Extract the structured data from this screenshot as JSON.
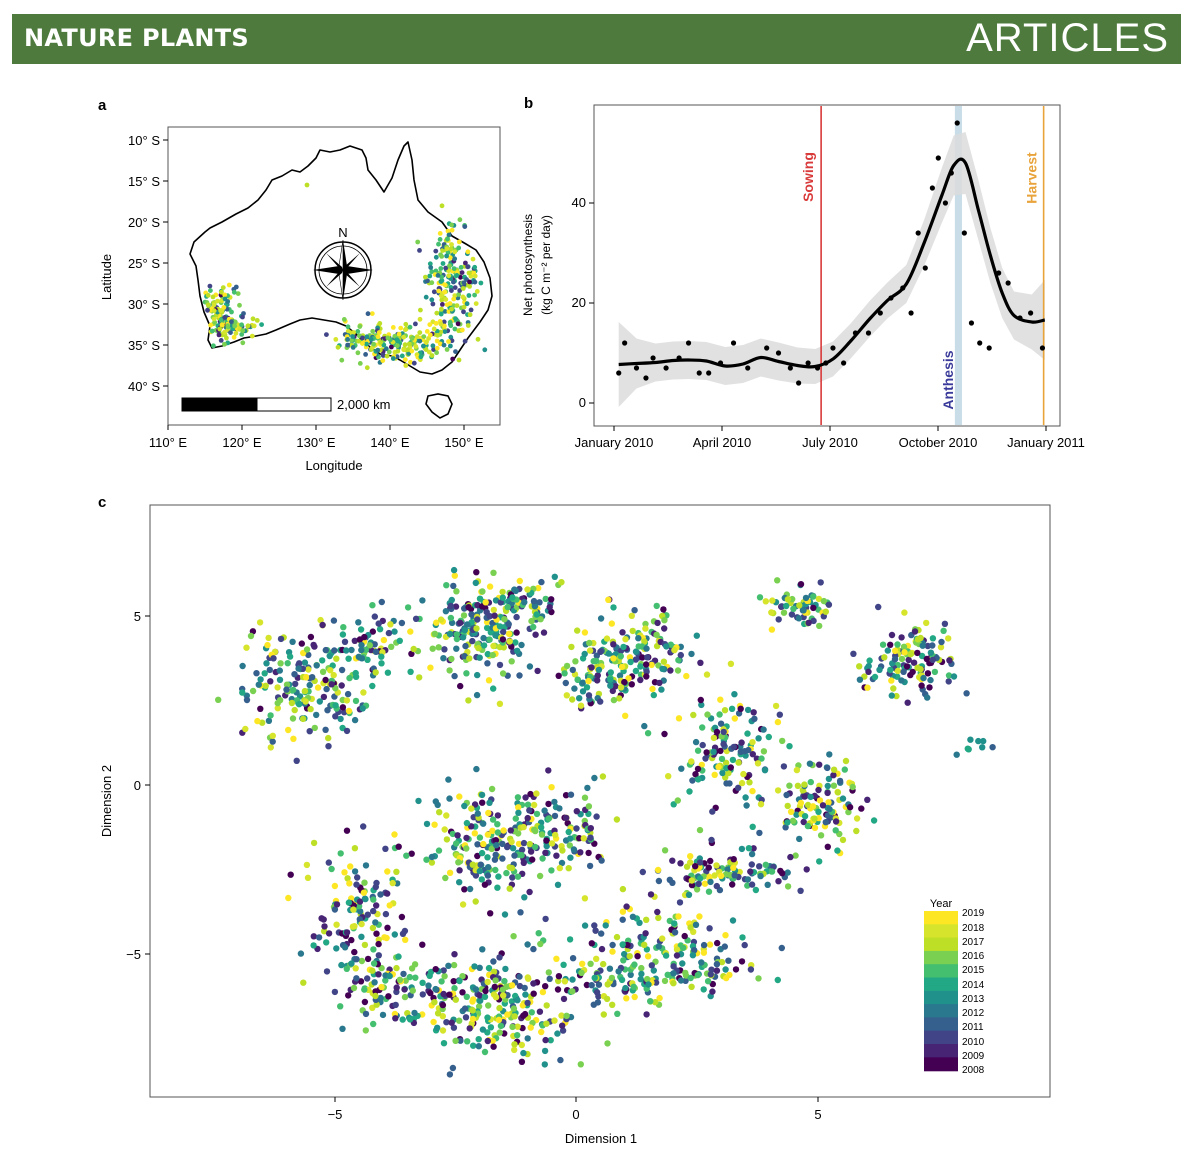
{
  "header": {
    "journal": "NATURE PLANTS",
    "section": "ARTICLES",
    "banner_color": "#4e7b3d"
  },
  "panels": {
    "a": {
      "letter": "a",
      "xlabel": "Longitude",
      "ylabel": "Latitude",
      "lat_ticks": [
        "10° S",
        "15° S",
        "20° S",
        "25° S",
        "30° S",
        "35° S",
        "40° S"
      ],
      "lon_ticks": [
        "110° E",
        "120° E",
        "130° E",
        "140° E",
        "150° E"
      ],
      "north_label": "N",
      "scalebar_label": "2,000 km",
      "map_name": "Australia",
      "point_palette": "viridis"
    },
    "b": {
      "letter": "b",
      "ylabel_line1": "Net photosynthesis",
      "ylabel_line2": "(kg C m⁻² per day)",
      "x_ticks": [
        "January 2010",
        "April 2010",
        "July 2010",
        "October 2010",
        "January 2011"
      ],
      "y_ticks": [
        "0",
        "20",
        "40"
      ],
      "sowing_label": "Sowing",
      "anthesis_label": "Anthesis",
      "harvest_label": "Harvest",
      "sowing_color": "#d93a3a",
      "anthesis_color": "#3a3a9a",
      "anthesis_band_color": "#c9dde8",
      "harvest_color": "#e8a33a"
    },
    "c": {
      "letter": "c",
      "xlabel": "Dimension 1",
      "ylabel": "Dimension 2",
      "x_ticks": [
        "−5",
        "0",
        "5"
      ],
      "y_ticks": [
        "5",
        "0",
        "−5"
      ],
      "legend_title": "Year",
      "legend_years": [
        "2019",
        "2018",
        "2017",
        "2016",
        "2015",
        "2014",
        "2013",
        "2012",
        "2011",
        "2010",
        "2009",
        "2008"
      ]
    }
  },
  "chart_data": [
    {
      "type": "scatter",
      "panel": "b",
      "ylabel": "Net photosynthesis (kg C m⁻² per day)",
      "xlim": [
        "2010-01-01",
        "2011-01-01"
      ],
      "ylim": [
        -3,
        59
      ],
      "observations": {
        "x": [
          "2010-01-05",
          "2010-01-10",
          "2010-01-20",
          "2010-01-28",
          "2010-02-03",
          "2010-02-14",
          "2010-02-25",
          "2010-03-05",
          "2010-03-14",
          "2010-03-22",
          "2010-04-01",
          "2010-04-12",
          "2010-04-24",
          "2010-05-10",
          "2010-05-20",
          "2010-05-30",
          "2010-06-06",
          "2010-06-14",
          "2010-06-22",
          "2010-06-29",
          "2010-07-05",
          "2010-07-14",
          "2010-07-24",
          "2010-08-04",
          "2010-08-14",
          "2010-08-23",
          "2010-09-02",
          "2010-09-09",
          "2010-09-15",
          "2010-09-21",
          "2010-09-27",
          "2010-10-02",
          "2010-10-08",
          "2010-10-13",
          "2010-10-18",
          "2010-10-24",
          "2010-10-30",
          "2010-11-06",
          "2010-11-14",
          "2010-11-22",
          "2010-11-30",
          "2010-12-10",
          "2010-12-19",
          "2010-12-29"
        ],
        "y": [
          6,
          12,
          7,
          5,
          9,
          7,
          9,
          12,
          6,
          6,
          8,
          12,
          7,
          11,
          10,
          7,
          4,
          8,
          7,
          8,
          11,
          8,
          14,
          14,
          18,
          21,
          23,
          18,
          34,
          27,
          43,
          49,
          40,
          46,
          56,
          34,
          16,
          12,
          11,
          26,
          24,
          17,
          18,
          11
        ]
      },
      "smooth_fit": {
        "name": "LOESS fit",
        "x": [
          "2010-01-05",
          "2010-01-20",
          "2010-02-05",
          "2010-02-20",
          "2010-03-05",
          "2010-03-20",
          "2010-04-05",
          "2010-04-20",
          "2010-05-05",
          "2010-05-20",
          "2010-06-05",
          "2010-06-20",
          "2010-07-05",
          "2010-07-20",
          "2010-08-05",
          "2010-08-20",
          "2010-09-05",
          "2010-09-20",
          "2010-10-05",
          "2010-10-15",
          "2010-10-25",
          "2010-11-05",
          "2010-11-15",
          "2010-11-25",
          "2010-12-05",
          "2010-12-20",
          "2010-12-31"
        ],
        "y": [
          7.7,
          7.9,
          8.1,
          8.5,
          8.6,
          8.4,
          7.4,
          7.8,
          9.1,
          8.3,
          7.5,
          7.3,
          8.8,
          12.4,
          16.8,
          20.5,
          23.8,
          32.0,
          41.5,
          47.5,
          48.0,
          38.5,
          29.5,
          22.0,
          17.5,
          16.2,
          16.6
        ],
        "ci_half_width": [
          8.5,
          5.0,
          3.8,
          3.8,
          3.8,
          3.8,
          3.8,
          3.8,
          3.8,
          3.8,
          3.6,
          3.5,
          3.5,
          3.5,
          3.6,
          3.6,
          3.8,
          4.6,
          5.5,
          6.0,
          6.2,
          6.0,
          5.5,
          5.0,
          4.8,
          5.5,
          8.0
        ]
      },
      "events": {
        "sowing_date": "2010-06-25",
        "anthesis_dates": [
          "2010-10-16",
          "2010-10-22"
        ],
        "harvest_date": "2010-12-30"
      }
    },
    {
      "type": "scatter",
      "panel": "c",
      "xlabel": "Dimension 1",
      "ylabel": "Dimension 2",
      "xlim": [
        -8.8,
        9.6
      ],
      "ylim": [
        -9.2,
        8.4
      ],
      "color_scale": {
        "title": "Year",
        "years": [
          2008,
          2009,
          2010,
          2011,
          2012,
          2013,
          2014,
          2015,
          2016,
          2017,
          2018,
          2019
        ],
        "colors": [
          "#440154",
          "#482475",
          "#414487",
          "#355f8d",
          "#2a788e",
          "#21918c",
          "#22a884",
          "#44bf70",
          "#7ad151",
          "#bddf26",
          "#d6e52b",
          "#fde725"
        ]
      },
      "clusters": [
        {
          "cx": -5.6,
          "cy": 3.0,
          "sx": 0.65,
          "sy": 0.85,
          "n": 190
        },
        {
          "cx": -4.2,
          "cy": 4.2,
          "sx": 0.4,
          "sy": 0.5,
          "n": 60
        },
        {
          "cx": -2.0,
          "cy": 4.6,
          "sx": 0.55,
          "sy": 0.75,
          "n": 200
        },
        {
          "cx": -1.0,
          "cy": 5.3,
          "sx": 0.5,
          "sy": 0.45,
          "n": 60
        },
        {
          "cx": 1.2,
          "cy": 3.8,
          "sx": 0.6,
          "sy": 0.65,
          "n": 170
        },
        {
          "cx": 0.3,
          "cy": 3.2,
          "sx": 0.35,
          "sy": 0.4,
          "n": 40
        },
        {
          "cx": 4.6,
          "cy": 5.3,
          "sx": 0.35,
          "sy": 0.25,
          "n": 60
        },
        {
          "cx": 7.0,
          "cy": 3.6,
          "sx": 0.55,
          "sy": 0.55,
          "n": 130
        },
        {
          "cx": 3.1,
          "cy": 1.0,
          "sx": 0.5,
          "sy": 0.85,
          "n": 130
        },
        {
          "cx": 5.1,
          "cy": -0.6,
          "sx": 0.45,
          "sy": 0.6,
          "n": 120
        },
        {
          "cx": 8.3,
          "cy": 1.0,
          "sx": 0.2,
          "sy": 0.15,
          "n": 8
        },
        {
          "cx": -1.8,
          "cy": -1.8,
          "sx": 0.7,
          "sy": 0.8,
          "n": 200
        },
        {
          "cx": -0.2,
          "cy": -1.2,
          "sx": 0.45,
          "sy": 0.65,
          "n": 90
        },
        {
          "cx": -4.6,
          "cy": -3.6,
          "sx": 0.5,
          "sy": 1.0,
          "n": 120
        },
        {
          "cx": 3.1,
          "cy": -2.6,
          "sx": 0.75,
          "sy": 0.35,
          "n": 110
        },
        {
          "cx": 1.7,
          "cy": -4.5,
          "sx": 0.8,
          "sy": 0.5,
          "n": 100
        },
        {
          "cx": -1.5,
          "cy": -6.5,
          "sx": 0.8,
          "sy": 0.8,
          "n": 230
        },
        {
          "cx": -3.8,
          "cy": -6.1,
          "sx": 0.65,
          "sy": 0.6,
          "n": 110
        },
        {
          "cx": 0.8,
          "cy": -5.8,
          "sx": 0.9,
          "sy": 0.4,
          "n": 100
        },
        {
          "cx": 2.6,
          "cy": -5.5,
          "sx": 0.55,
          "sy": 0.3,
          "n": 50
        }
      ]
    }
  ]
}
